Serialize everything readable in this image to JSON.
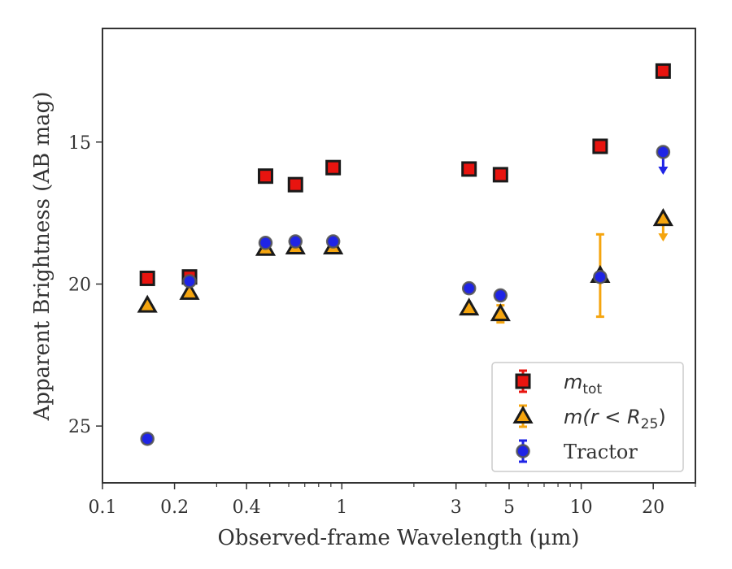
{
  "chart_data": {
    "type": "scatter",
    "title": "",
    "xlabel": "Observed-frame Wavelength (μm)",
    "ylabel": "Apparent Brightness (AB mag)",
    "xscale": "log",
    "xlim": [
      0.1,
      30
    ],
    "ylim": [
      27,
      11
    ],
    "y_inverted": true,
    "grid": false,
    "legend_position": "lower-right",
    "x_ticks": [
      {
        "value": 0.1,
        "label": "0.1"
      },
      {
        "value": 0.2,
        "label": "0.2"
      },
      {
        "value": 0.4,
        "label": "0.4"
      },
      {
        "value": 1,
        "label": "1"
      },
      {
        "value": 3,
        "label": "3"
      },
      {
        "value": 5,
        "label": "5"
      },
      {
        "value": 10,
        "label": "10"
      },
      {
        "value": 20,
        "label": "20"
      }
    ],
    "y_ticks": [
      {
        "value": 15,
        "label": "15"
      },
      {
        "value": 20,
        "label": "20"
      },
      {
        "value": 25,
        "label": "25"
      }
    ],
    "series": [
      {
        "key": "mtot",
        "legend": {
          "base": "m",
          "sub": "tot"
        },
        "marker": "square",
        "color": "#e8140f",
        "edge": "#1a1a1a",
        "points": [
          {
            "x": 0.154,
            "y": 19.8
          },
          {
            "x": 0.231,
            "y": 19.75
          },
          {
            "x": 0.48,
            "y": 16.2
          },
          {
            "x": 0.64,
            "y": 16.5
          },
          {
            "x": 0.92,
            "y": 15.9
          },
          {
            "x": 3.4,
            "y": 15.95
          },
          {
            "x": 4.6,
            "y": 16.15
          },
          {
            "x": 12.0,
            "y": 15.15
          },
          {
            "x": 22.0,
            "y": 12.5
          }
        ]
      },
      {
        "key": "mr25",
        "legend": {
          "base": "m",
          "mid": "(r < R",
          "sub": "25",
          "end": ")"
        },
        "marker": "triangle",
        "color": "#f5a50f",
        "edge": "#1a1a1a",
        "points": [
          {
            "x": 0.154,
            "y": 20.75
          },
          {
            "x": 0.231,
            "y": 20.3
          },
          {
            "x": 0.48,
            "y": 18.75
          },
          {
            "x": 0.64,
            "y": 18.7
          },
          {
            "x": 0.92,
            "y": 18.7
          },
          {
            "x": 3.4,
            "y": 20.85
          },
          {
            "x": 4.6,
            "y": 21.05,
            "yerr": 0.3
          },
          {
            "x": 12.0,
            "y": 19.7,
            "yerr": 1.45
          },
          {
            "x": 22.0,
            "y": 17.7,
            "upper_limit": true
          }
        ]
      },
      {
        "key": "tractor",
        "legend": {
          "text": "Tractor"
        },
        "marker": "circle",
        "color": "#1f24e6",
        "edge": "#555555",
        "points": [
          {
            "x": 0.154,
            "y": 25.45
          },
          {
            "x": 0.231,
            "y": 19.9
          },
          {
            "x": 0.48,
            "y": 18.55
          },
          {
            "x": 0.64,
            "y": 18.5
          },
          {
            "x": 0.92,
            "y": 18.5
          },
          {
            "x": 3.4,
            "y": 20.15
          },
          {
            "x": 4.6,
            "y": 20.4
          },
          {
            "x": 12.0,
            "y": 19.75
          },
          {
            "x": 22.0,
            "y": 15.35,
            "upper_limit": true
          }
        ]
      }
    ]
  }
}
